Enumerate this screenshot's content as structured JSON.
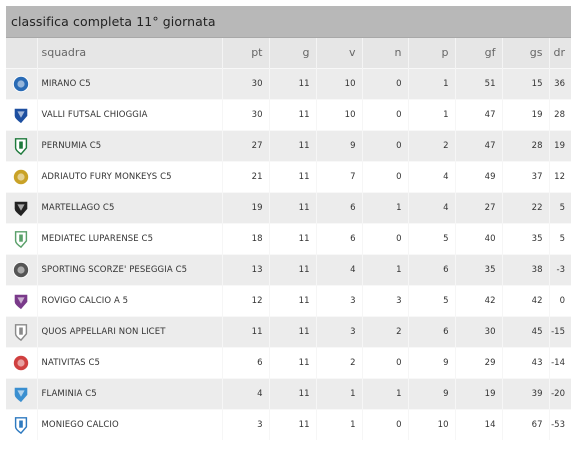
{
  "title": "classifica completa 11° giornata",
  "columns": {
    "squadra": "squadra",
    "pt": "pt",
    "g": "g",
    "v": "v",
    "n": "n",
    "p": "p",
    "gf": "gf",
    "gs": "gs",
    "dr": "dr"
  },
  "rows": [
    {
      "name": "MIRANO C5",
      "pt": "30",
      "g": "11",
      "v": "10",
      "n": "0",
      "p": "1",
      "gf": "51",
      "gs": "15",
      "dr": "36",
      "crest": "mirano-crest",
      "color": "#2a6bb5"
    },
    {
      "name": "VALLI FUTSAL CHIOGGIA",
      "pt": "30",
      "g": "11",
      "v": "10",
      "n": "0",
      "p": "1",
      "gf": "47",
      "gs": "19",
      "dr": "28",
      "crest": "valli-crest",
      "color": "#1d4fa0"
    },
    {
      "name": "PERNUMIA C5",
      "pt": "27",
      "g": "11",
      "v": "9",
      "n": "0",
      "p": "2",
      "gf": "47",
      "gs": "28",
      "dr": "19",
      "crest": "pernumia-crest",
      "color": "#1e7a3c"
    },
    {
      "name": "ADRIAUTO FURY MONKEYS C5",
      "pt": "21",
      "g": "11",
      "v": "7",
      "n": "0",
      "p": "4",
      "gf": "49",
      "gs": "37",
      "dr": "12",
      "crest": "fury-monkeys-crest",
      "color": "#c9a227"
    },
    {
      "name": "MARTELLAGO C5",
      "pt": "19",
      "g": "11",
      "v": "6",
      "n": "1",
      "p": "4",
      "gf": "27",
      "gs": "22",
      "dr": "5",
      "crest": "martellago-crest",
      "color": "#222222"
    },
    {
      "name": "MEDIATEC LUPARENSE C5",
      "pt": "18",
      "g": "11",
      "v": "6",
      "n": "0",
      "p": "5",
      "gf": "40",
      "gs": "35",
      "dr": "5",
      "crest": "luparense-crest",
      "color": "#5aa06a"
    },
    {
      "name": "SPORTING SCORZE' PESEGGIA C5",
      "pt": "13",
      "g": "11",
      "v": "4",
      "n": "1",
      "p": "6",
      "gf": "35",
      "gs": "38",
      "dr": "-3",
      "crest": "sporting-crest",
      "color": "#555555"
    },
    {
      "name": "ROVIGO CALCIO A 5",
      "pt": "12",
      "g": "11",
      "v": "3",
      "n": "3",
      "p": "5",
      "gf": "42",
      "gs": "42",
      "dr": "0",
      "crest": "rovigo-crest",
      "color": "#7a3a8a"
    },
    {
      "name": "QUOS APPELLARI NON LICET",
      "pt": "11",
      "g": "11",
      "v": "3",
      "n": "2",
      "p": "6",
      "gf": "30",
      "gs": "45",
      "dr": "-15",
      "crest": "quos-crest",
      "color": "#8a8a8a"
    },
    {
      "name": "NATIVITAS C5",
      "pt": "6",
      "g": "11",
      "v": "2",
      "n": "0",
      "p": "9",
      "gf": "29",
      "gs": "43",
      "dr": "-14",
      "crest": "nativitas-crest",
      "color": "#d04040"
    },
    {
      "name": "FLAMINIA C5",
      "pt": "4",
      "g": "11",
      "v": "1",
      "n": "1",
      "p": "9",
      "gf": "19",
      "gs": "39",
      "dr": "-20",
      "crest": "flaminia-crest",
      "color": "#3a8fd0"
    },
    {
      "name": "MONIEGO CALCIO",
      "pt": "3",
      "g": "11",
      "v": "1",
      "n": "0",
      "p": "10",
      "gf": "14",
      "gs": "67",
      "dr": "-53",
      "crest": "moniego-crest",
      "color": "#2e7ac0"
    }
  ]
}
